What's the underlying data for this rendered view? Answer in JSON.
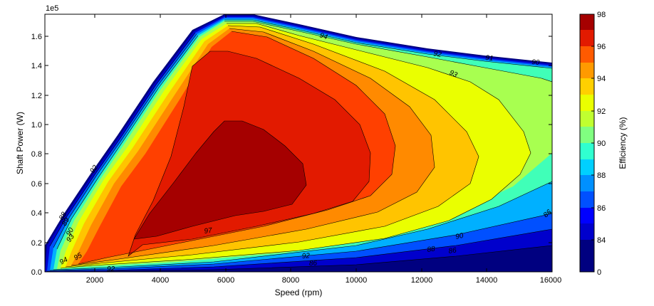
{
  "chart_data": {
    "type": "contour",
    "xlabel": "Speed  (rpm)",
    "ylabel": "Shaft Power  (W)",
    "y_offset_text": "1e5",
    "xlim": [
      500,
      16000
    ],
    "ylim": [
      0,
      1.75
    ],
    "x_ticks": [
      "2000",
      "4000",
      "6000",
      "8000",
      "10000",
      "12000",
      "14000",
      "16000"
    ],
    "y_ticks": [
      "0.0",
      "0.2",
      "0.4",
      "0.6",
      "0.8",
      "1.0",
      "1.2",
      "1.4",
      "1.6"
    ],
    "colorbar": {
      "label": "Efficiency (%)",
      "ticks": [
        "0",
        "84",
        "86",
        "88",
        "90",
        "92",
        "94",
        "96",
        "98"
      ]
    },
    "peak_region_label": "97",
    "contour_labels": [
      "94",
      "92",
      "91",
      "90",
      "93",
      "92",
      "90",
      "88",
      "86",
      "92",
      "90",
      "89",
      "88",
      "86",
      "86",
      "93",
      "92",
      "94",
      "95"
    ]
  }
}
